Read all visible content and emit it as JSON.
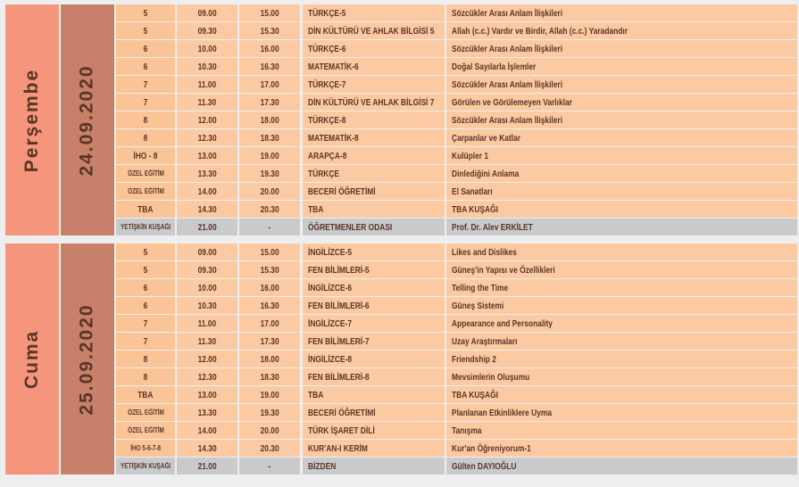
{
  "days": [
    {
      "day": "Perşembe",
      "date": "24.09.2020",
      "rows": [
        [
          "5",
          "09.00",
          "15.00",
          "TÜRKÇE-5",
          "Sözcükler Arası Anlam İlişkileri"
        ],
        [
          "5",
          "09.30",
          "15.30",
          "DİN KÜLTÜRÜ VE AHLAK BİLGİSİ 5",
          "Allah (c.c.) Vardır ve Birdir, Allah (c.c.) Yaradandır"
        ],
        [
          "6",
          "10.00",
          "16.00",
          "TÜRKÇE-6",
          "Sözcükler Arası Anlam İlişkileri"
        ],
        [
          "6",
          "10.30",
          "16.30",
          "MATEMATİK-6",
          "Doğal Sayılarla İşlemler"
        ],
        [
          "7",
          "11.00",
          "17.00",
          "TÜRKÇE-7",
          "Sözcükler Arası Anlam İlişkileri"
        ],
        [
          "7",
          "11.30",
          "17.30",
          "DİN KÜLTÜRÜ VE AHLAK BİLGİSİ 7",
          "Görülen ve Görülemeyen Varlıklar"
        ],
        [
          "8",
          "12.00",
          "18.00",
          "TÜRKÇE-8",
          "Sözcükler Arası Anlam İlişkileri"
        ],
        [
          "8",
          "12.30",
          "18.30",
          "MATEMATİK-8",
          "Çarpanlar ve Katlar"
        ],
        [
          "İHO - 8",
          "13.00",
          "19.00",
          "ARAPÇA-8",
          "Kulüpler 1"
        ],
        [
          "ÖZEL EĞİTİM",
          "13.30",
          "19.30",
          "TÜRKÇE",
          "Dinlediğini Anlama"
        ],
        [
          "ÖZEL EĞİTİM",
          "14.00",
          "20.00",
          "BECERİ ÖĞRETİMİ",
          "El Sanatları"
        ],
        [
          "TBA",
          "14.30",
          "20.30",
          "TBA",
          "TBA KUŞAĞI"
        ],
        [
          "YETİŞKİN KUŞAĞI",
          "21.00",
          "-",
          "ÖĞRETMENLER ODASI",
          "Prof. Dr. Alev ERKİLET"
        ]
      ]
    },
    {
      "day": "Cuma",
      "date": "25.09.2020",
      "rows": [
        [
          "5",
          "09.00",
          "15.00",
          "İNGİLİZCE-5",
          "Likes and Dislikes"
        ],
        [
          "5",
          "09.30",
          "15.30",
          "FEN BİLİMLERİ-5",
          "Güneş'in Yapısı ve Özellikleri"
        ],
        [
          "6",
          "10.00",
          "16.00",
          "İNGİLİZCE-6",
          "Telling the Time"
        ],
        [
          "6",
          "10.30",
          "16.30",
          "FEN BİLİMLERİ-6",
          "Güneş Sistemi"
        ],
        [
          "7",
          "11.00",
          "17.00",
          "İNGİLİZCE-7",
          "Appearance and Personality"
        ],
        [
          "7",
          "11.30",
          "17.30",
          "FEN BİLİMLERİ-7",
          "Uzay Araştırmaları"
        ],
        [
          "8",
          "12.00",
          "18.00",
          "İNGİLİZCE-8",
          "Friendship 2"
        ],
        [
          "8",
          "12.30",
          "18.30",
          "FEN BİLİMLERİ-8",
          "Mevsimlerin Oluşumu"
        ],
        [
          "TBA",
          "13.00",
          "19.00",
          "TBA",
          "TBA KUŞAĞI"
        ],
        [
          "ÖZEL EĞİTİM",
          "13.30",
          "19.30",
          "BECERİ ÖĞRETİMİ",
          "Planlanan Etkinliklere Uyma"
        ],
        [
          "ÖZEL EĞİTİM",
          "14.00",
          "20.00",
          "TÜRK İŞARET DİLİ",
          "Tanışma"
        ],
        [
          "İHO 5-6-7-8",
          "14.30",
          "20.30",
          "KUR'AN-I KERİM",
          "Kur'an Öğreniyorum-1"
        ],
        [
          "YETİŞKİN KUŞAĞI",
          "21.00",
          "-",
          "BİZDEN",
          "Gülten DAYIOĞLU"
        ]
      ]
    }
  ]
}
